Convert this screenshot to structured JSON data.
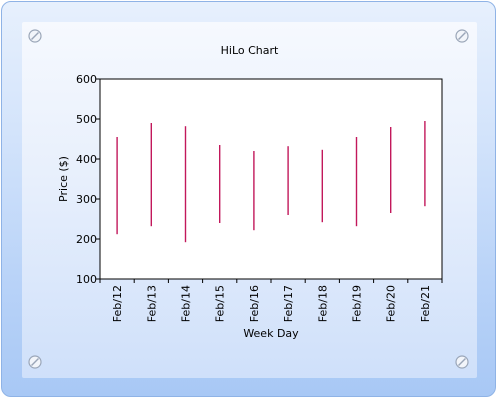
{
  "chart_data": {
    "type": "hilo",
    "title": "HiLo Chart",
    "xlabel": "Week Day",
    "ylabel": "Price ($)",
    "ylim": [
      100,
      600
    ],
    "yticks": [
      100,
      200,
      300,
      400,
      500,
      600
    ],
    "categories": [
      "Feb/12",
      "Feb/13",
      "Feb/14",
      "Feb/15",
      "Feb/16",
      "Feb/17",
      "Feb/18",
      "Feb/19",
      "Feb/20",
      "Feb/21"
    ],
    "series": [
      {
        "high": [
          455,
          490,
          482,
          435,
          420,
          432,
          423,
          455,
          480,
          495
        ],
        "low": [
          212,
          232,
          192,
          240,
          222,
          260,
          242,
          232,
          265,
          282
        ]
      }
    ],
    "grid": false,
    "colors": {
      "bar": "#c2185b",
      "plot_bg": "#ffffff"
    }
  },
  "icons": [
    "screw-icon"
  ]
}
